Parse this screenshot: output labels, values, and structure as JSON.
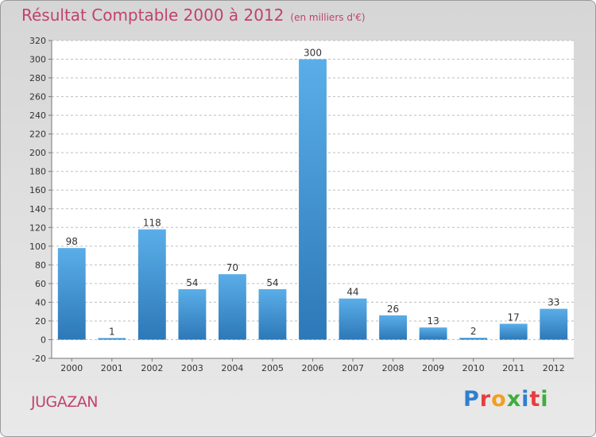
{
  "chart_data": {
    "type": "bar",
    "title": "Résultat Comptable 2000 à 2012",
    "subtitle": "(en milliers d'€)",
    "categories": [
      "2000",
      "2001",
      "2002",
      "2003",
      "2004",
      "2005",
      "2006",
      "2007",
      "2008",
      "2009",
      "2010",
      "2011",
      "2012"
    ],
    "values": [
      98,
      1,
      118,
      54,
      70,
      54,
      300,
      44,
      26,
      13,
      2,
      17,
      33
    ],
    "ylim": [
      -20,
      320
    ],
    "yticks": [
      -20,
      0,
      20,
      40,
      60,
      80,
      100,
      120,
      140,
      160,
      180,
      200,
      220,
      240,
      260,
      280,
      300,
      320
    ],
    "grid": "horizontal dashed",
    "xlabel": "",
    "ylabel": ""
  },
  "place_name": "JUGAZAN",
  "logo": {
    "letters": [
      "P",
      "r",
      "o",
      "x",
      "i",
      "t",
      "i"
    ],
    "colors": [
      "#2f7fd0",
      "#e83d3d",
      "#f0a020",
      "#3cae3c",
      "#2f7fd0",
      "#e83d3d",
      "#3cae3c"
    ]
  },
  "colors": {
    "accent": "#c0436a",
    "bar_top": "#5aaee8",
    "bar_bottom": "#2d78b8"
  }
}
